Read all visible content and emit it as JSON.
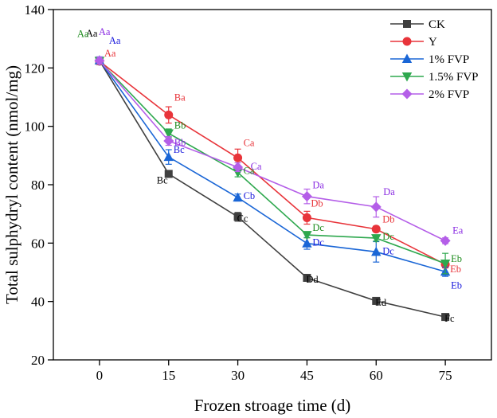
{
  "chart_data": {
    "type": "line",
    "title": "",
    "xlabel": "Frozen stroage time (d)",
    "ylabel": "Total sulphydryl content (nmol/mg)",
    "xlim": [
      -10,
      85
    ],
    "ylim": [
      20,
      140
    ],
    "x": [
      0,
      15,
      30,
      45,
      60,
      75
    ],
    "x_ticks": [
      "0",
      "15",
      "30",
      "45",
      "60",
      "75"
    ],
    "y_ticks": [
      "20",
      "40",
      "60",
      "80",
      "100",
      "120",
      "140"
    ],
    "y_tick_values": [
      20,
      40,
      60,
      80,
      100,
      120,
      140
    ],
    "legend_position": "top-right",
    "series": [
      {
        "name": "CK",
        "color": "#3f3f3f",
        "marker": "square",
        "values": [
          122.5,
          83.7,
          69.0,
          48.1,
          40.2,
          34.7
        ],
        "errors": [
          1.2,
          0.8,
          1.5,
          0.8,
          0.7,
          0.6
        ],
        "letters": [
          "Aa",
          "Bc",
          "Cc",
          "Dd",
          "Ed",
          "Fc"
        ],
        "letter_color": "#000000"
      },
      {
        "name": "Y",
        "color": "#e8343a",
        "marker": "circle",
        "values": [
          122.3,
          103.9,
          89.2,
          68.7,
          64.8,
          52.7
        ],
        "errors": [
          1.2,
          2.8,
          3.0,
          2.2,
          1.0,
          1.2
        ],
        "letters": [
          "Aa",
          "Ba",
          "Ca",
          "Db",
          "Db",
          "Eb"
        ],
        "letter_color": "#e8343a"
      },
      {
        "name": "1% FVP",
        "color": "#1a66d6",
        "marker": "triangle-up",
        "values": [
          122.6,
          89.5,
          75.6,
          59.9,
          57.0,
          50.2
        ],
        "errors": [
          1.2,
          2.5,
          1.2,
          2.0,
          3.5,
          1.6
        ],
        "letters": [
          "Aa",
          "Bc",
          "Cb",
          "Dc",
          "Dc",
          "Eb"
        ],
        "letter_color": "#1a1adc"
      },
      {
        "name": "1.5% FVP",
        "color": "#2ea84e",
        "marker": "triangle-down",
        "values": [
          122.4,
          97.6,
          84.2,
          62.8,
          61.7,
          53.0
        ],
        "errors": [
          1.2,
          1.5,
          1.5,
          1.0,
          1.0,
          3.5
        ],
        "letters": [
          "Aa",
          "Bb",
          "Ca",
          "Dc",
          "Dc",
          "Eb"
        ],
        "letter_color": "#1e8c1e"
      },
      {
        "name": "2% FVP",
        "color": "#b45ee8",
        "marker": "diamond",
        "values": [
          122.5,
          95.0,
          86.0,
          76.0,
          72.4,
          60.8
        ],
        "errors": [
          1.2,
          1.5,
          1.5,
          2.5,
          3.5,
          1.0
        ],
        "letters": [
          "Aa",
          "Bb",
          "Ca",
          "Da",
          "Da",
          "Ea"
        ],
        "letter_color": "#8a2be2"
      }
    ]
  }
}
